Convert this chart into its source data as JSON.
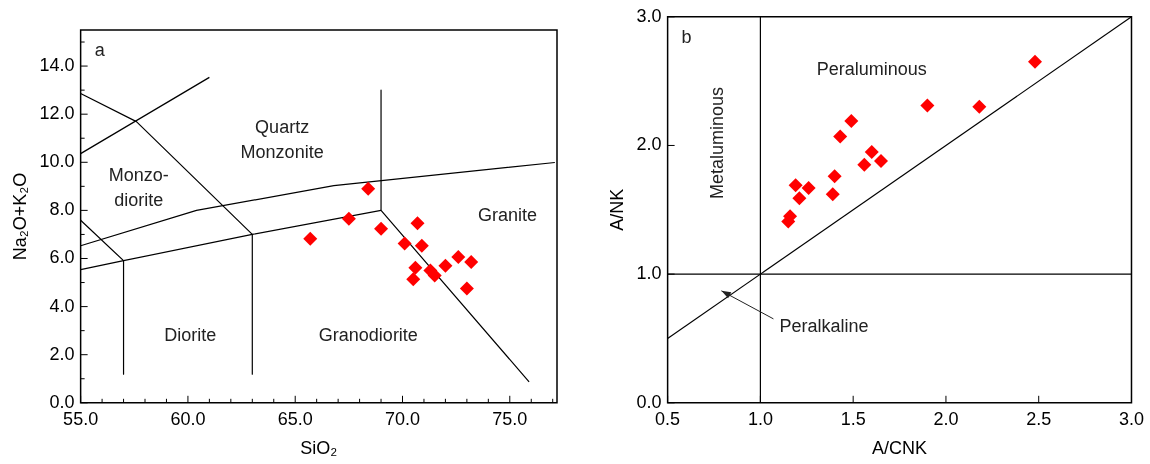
{
  "chart_data": [
    {
      "type": "scatter",
      "xlabel": "SiO₂",
      "ylabel": "Na₂O+K₂O",
      "legend": false,
      "grid": false,
      "xlim": [
        55,
        77.2
      ],
      "ylim": [
        0,
        15.5
      ],
      "xticks": [
        {
          "value": 55,
          "label": "55.0"
        },
        {
          "value": 56,
          "label": null
        },
        {
          "value": 57,
          "label": null
        },
        {
          "value": 58,
          "label": null
        },
        {
          "value": 59,
          "label": null
        },
        {
          "value": 60,
          "label": "60.0"
        },
        {
          "value": 61,
          "label": null
        },
        {
          "value": 62,
          "label": null
        },
        {
          "value": 63,
          "label": null
        },
        {
          "value": 64,
          "label": null
        },
        {
          "value": 65,
          "label": "65.0"
        },
        {
          "value": 66,
          "label": null
        },
        {
          "value": 67,
          "label": null
        },
        {
          "value": 68,
          "label": null
        },
        {
          "value": 69,
          "label": null
        },
        {
          "value": 70,
          "label": "70.0"
        },
        {
          "value": 71,
          "label": null
        },
        {
          "value": 72,
          "label": null
        },
        {
          "value": 73,
          "label": null
        },
        {
          "value": 74,
          "label": null
        },
        {
          "value": 75,
          "label": "75.0"
        },
        {
          "value": 76,
          "label": null
        },
        {
          "value": 77,
          "label": null
        }
      ],
      "yticks": [
        {
          "value": 0,
          "label": "0.0"
        },
        {
          "value": 1,
          "label": null
        },
        {
          "value": 2,
          "label": "2.0"
        },
        {
          "value": 3,
          "label": null
        },
        {
          "value": 4,
          "label": "4.0"
        },
        {
          "value": 5,
          "label": null
        },
        {
          "value": 6,
          "label": "6.0"
        },
        {
          "value": 7,
          "label": null
        },
        {
          "value": 8,
          "label": "8.0"
        },
        {
          "value": 9,
          "label": null
        },
        {
          "value": 10,
          "label": "10.0"
        },
        {
          "value": 11,
          "label": null
        },
        {
          "value": 12,
          "label": "12.0"
        },
        {
          "value": 13,
          "label": null
        },
        {
          "value": 14,
          "label": "14.0"
        },
        {
          "value": 15,
          "label": null
        }
      ],
      "series": [
        {
          "type": "scatter",
          "color": "#ff0000",
          "marker": "diamond",
          "x": [
            65.7,
            67.5,
            68.4,
            69.0,
            70.1,
            70.7,
            70.9,
            70.6,
            70.5,
            71.3,
            71.5,
            72.0,
            72.6,
            73.2,
            73.0
          ],
          "values": [
            6.82,
            7.65,
            8.9,
            7.24,
            6.62,
            7.47,
            6.53,
            5.61,
            5.14,
            5.5,
            5.29,
            5.7,
            6.06,
            5.85,
            4.75
          ]
        },
        {
          "type": "line",
          "color": "#000000",
          "marker": "none",
          "x": [
            55,
            61.0
          ],
          "values": [
            10.36,
            13.53
          ]
        },
        {
          "type": "line",
          "color": "#000000",
          "marker": "none",
          "x": [
            55,
            57.6,
            63.0,
            63.0
          ],
          "values": [
            12.86,
            11.69,
            7.0,
            1.19
          ]
        },
        {
          "type": "line",
          "color": "#000000",
          "marker": "none",
          "x": [
            55,
            57.0,
            57.0
          ],
          "values": [
            7.59,
            5.91,
            1.19
          ]
        },
        {
          "type": "line",
          "color": "#000000",
          "marker": "none",
          "x": [
            55,
            57.0,
            63.0,
            69.0
          ],
          "values": [
            5.54,
            5.91,
            7.0,
            8.0
          ]
        },
        {
          "type": "line",
          "color": "#000000",
          "marker": "none",
          "x": [
            55,
            60.4,
            66.8,
            77.1
          ],
          "values": [
            6.53,
            8.0,
            9.03,
            9.99
          ]
        },
        {
          "type": "line",
          "color": "#000000",
          "marker": "none",
          "x": [
            69.0,
            69.0,
            75.9
          ],
          "values": [
            13.0,
            8.0,
            0.87
          ]
        }
      ],
      "annotations": [
        "a",
        "Monzo-\ndiorite",
        "Quartz\nMonzonite",
        "Granite",
        "Diorite",
        "Granodiorite"
      ]
    },
    {
      "type": "scatter",
      "xlabel": "A/CNK",
      "ylabel": "A/NK",
      "legend": false,
      "grid": false,
      "xlim": [
        0.5,
        3.0
      ],
      "ylim": [
        0,
        3.0
      ],
      "xticks": [
        0.5,
        {
          "value": 1,
          "label": "1.0"
        },
        1.5,
        {
          "value": 2,
          "label": "2.0"
        },
        2.5,
        {
          "value": 3,
          "label": "3.0"
        }
      ],
      "yticks": [
        {
          "value": 0,
          "label": "0.0"
        },
        {
          "value": 1,
          "label": "1.0"
        },
        {
          "value": 2,
          "label": "2.0"
        },
        {
          "value": 3,
          "label": "3.0"
        }
      ],
      "series": [
        {
          "type": "scatter",
          "color": "#ff0000",
          "marker": "diamond",
          "x": [
            2.48,
            1.9,
            2.18,
            1.49,
            1.43,
            1.6,
            1.56,
            1.65,
            1.4,
            1.39,
            1.19,
            1.26,
            1.21,
            1.16,
            1.15
          ],
          "values": [
            2.65,
            2.31,
            2.3,
            2.19,
            2.07,
            1.95,
            1.85,
            1.88,
            1.76,
            1.62,
            1.69,
            1.67,
            1.59,
            1.45,
            1.41
          ]
        },
        {
          "type": "line",
          "color": "#000000",
          "marker": "none",
          "x": [
            1.0,
            1.0
          ],
          "values": [
            0,
            3.0
          ]
        },
        {
          "type": "line",
          "color": "#000000",
          "marker": "none",
          "x": [
            0.5,
            3.0
          ],
          "values": [
            1.0,
            1.0
          ]
        },
        {
          "type": "line",
          "color": "#000000",
          "marker": "none",
          "x": [
            0.5,
            3.0
          ],
          "values": [
            0.5,
            3.0
          ]
        }
      ],
      "annotations": [
        "b",
        "Peraluminous",
        "Metaluminous",
        "Peralkaline"
      ]
    }
  ]
}
